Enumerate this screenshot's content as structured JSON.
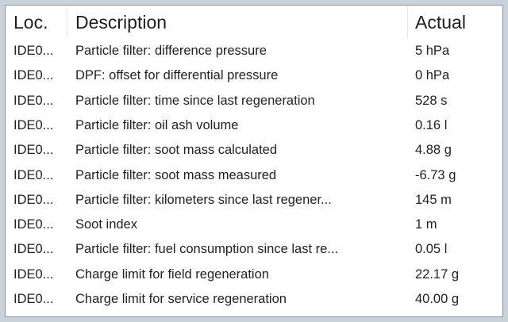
{
  "columns": {
    "loc": "Loc.",
    "description": "Description",
    "actual": "Actual"
  },
  "rows": [
    {
      "loc": "IDE0...",
      "description": "Particle filter: difference pressure",
      "actual": "5 hPa"
    },
    {
      "loc": "IDE0...",
      "description": "DPF: offset for differential pressure",
      "actual": "0 hPa"
    },
    {
      "loc": "IDE0...",
      "description": "Particle filter: time since last regeneration",
      "actual": "528 s"
    },
    {
      "loc": "IDE0...",
      "description": "Particle filter: oil ash volume",
      "actual": "0.16 l"
    },
    {
      "loc": "IDE0...",
      "description": "Particle filter: soot mass calculated",
      "actual": "4.88 g"
    },
    {
      "loc": "IDE0...",
      "description": "Particle filter: soot mass measured",
      "actual": "-6.73 g"
    },
    {
      "loc": "IDE0...",
      "description": "Particle filter: kilometers since last regener...",
      "actual": "145 m"
    },
    {
      "loc": "IDE0...",
      "description": "Soot index",
      "actual": "1 m"
    },
    {
      "loc": "IDE0...",
      "description": "Particle filter: fuel consumption since last re...",
      "actual": "0.05 l"
    },
    {
      "loc": "IDE0...",
      "description": "Charge limit for field regeneration",
      "actual": "22.17 g"
    },
    {
      "loc": "IDE0...",
      "description": "Charge limit for service regeneration",
      "actual": "40.00 g"
    }
  ]
}
